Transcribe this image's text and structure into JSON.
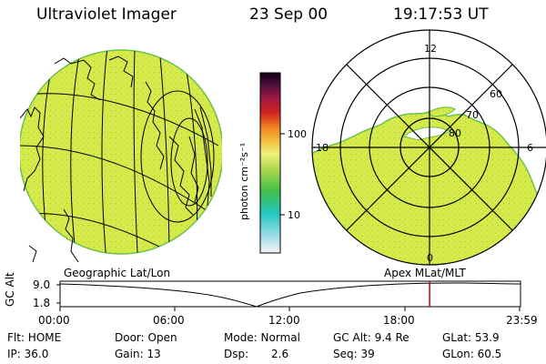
{
  "header": {
    "instrument": "Ultraviolet Imager",
    "date": "23 Sep 00",
    "time": "19:17:53 UT"
  },
  "colorbar": {
    "unit_label": "photon cm⁻²s⁻¹",
    "ticks": [
      "100",
      "10"
    ],
    "scale": "log"
  },
  "panels": {
    "left_label": "Geographic Lat/Lon",
    "right_label": "Apex MLat/MLT"
  },
  "polar_labels": {
    "mlt": [
      "12",
      "18",
      "6",
      "0"
    ],
    "mlat": [
      "60",
      "70",
      "80"
    ]
  },
  "altitude_plot": {
    "ylabel": "GC Alt",
    "ymax": "9.0",
    "ymin": "1.8",
    "x_ticks": [
      "00:00",
      "06:00",
      "12:00",
      "18:00",
      "23:59"
    ],
    "marker_time_hours": 19.3
  },
  "info": {
    "flt": "Flt: HOME",
    "door": "Door: Open",
    "mode": "Mode: Normal",
    "gc_alt": "GC Alt: 9.4 Re",
    "glat": "GLat:  53.9",
    "ip": "IP: 36.0",
    "gain": "Gain: 13",
    "dsp_label": "Dsp:",
    "dsp_value": "2.6",
    "seq": "Seq: 39",
    "glon": "GLon:  60.5"
  },
  "colors": {
    "emission": "#d6ea4a",
    "emission_dots": "#6fc04a",
    "marker": "#cc0000"
  }
}
